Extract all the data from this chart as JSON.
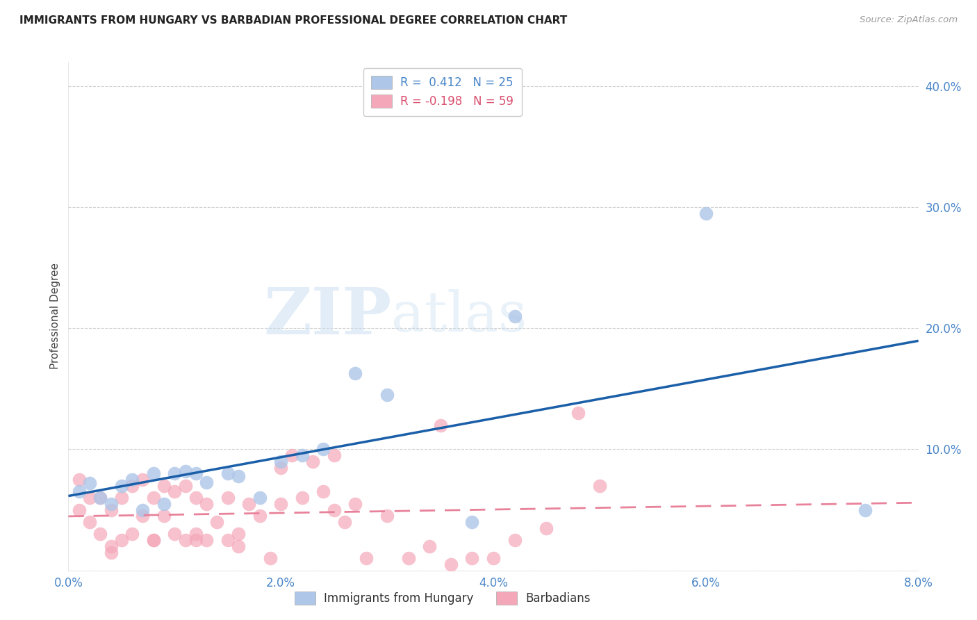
{
  "title": "IMMIGRANTS FROM HUNGARY VS BARBADIAN PROFESSIONAL DEGREE CORRELATION CHART",
  "source": "Source: ZipAtlas.com",
  "ylabel": "Professional Degree",
  "xlim": [
    0.0,
    0.08
  ],
  "ylim": [
    0.0,
    0.42
  ],
  "xtick_labels": [
    "0.0%",
    "2.0%",
    "4.0%",
    "6.0%",
    "8.0%"
  ],
  "xtick_values": [
    0.0,
    0.02,
    0.04,
    0.06,
    0.08
  ],
  "ytick_labels": [
    "",
    "10.0%",
    "20.0%",
    "30.0%",
    "40.0%"
  ],
  "ytick_values": [
    0.0,
    0.1,
    0.2,
    0.3,
    0.4
  ],
  "hungary_R": 0.412,
  "hungary_N": 25,
  "barbados_R": -0.198,
  "barbados_N": 59,
  "hungary_color": "#aec6e8",
  "hungary_line_color": "#1a5fa8",
  "barbados_color": "#f4a7b9",
  "barbados_line_color": "#e8829a",
  "watermark_zip": "ZIP",
  "watermark_atlas": "atlas",
  "hungary_x": [
    0.001,
    0.002,
    0.003,
    0.004,
    0.005,
    0.006,
    0.007,
    0.008,
    0.009,
    0.01,
    0.011,
    0.012,
    0.013,
    0.015,
    0.016,
    0.018,
    0.02,
    0.022,
    0.024,
    0.027,
    0.03,
    0.038,
    0.042,
    0.06,
    0.075
  ],
  "hungary_y": [
    0.065,
    0.072,
    0.06,
    0.055,
    0.07,
    0.075,
    0.05,
    0.08,
    0.055,
    0.08,
    0.082,
    0.08,
    0.073,
    0.08,
    0.078,
    0.06,
    0.09,
    0.095,
    0.1,
    0.163,
    0.145,
    0.04,
    0.21,
    0.295,
    0.05
  ],
  "barbados_x": [
    0.001,
    0.001,
    0.002,
    0.002,
    0.003,
    0.003,
    0.004,
    0.004,
    0.005,
    0.005,
    0.006,
    0.006,
    0.007,
    0.007,
    0.008,
    0.008,
    0.009,
    0.009,
    0.01,
    0.01,
    0.011,
    0.011,
    0.012,
    0.012,
    0.013,
    0.013,
    0.014,
    0.015,
    0.015,
    0.016,
    0.017,
    0.018,
    0.019,
    0.02,
    0.02,
    0.021,
    0.022,
    0.023,
    0.024,
    0.025,
    0.026,
    0.027,
    0.028,
    0.03,
    0.032,
    0.034,
    0.036,
    0.038,
    0.04,
    0.042,
    0.045,
    0.048,
    0.05,
    0.035,
    0.025,
    0.016,
    0.012,
    0.008,
    0.004
  ],
  "barbados_y": [
    0.05,
    0.075,
    0.04,
    0.06,
    0.03,
    0.06,
    0.02,
    0.05,
    0.025,
    0.06,
    0.03,
    0.07,
    0.045,
    0.075,
    0.025,
    0.06,
    0.045,
    0.07,
    0.03,
    0.065,
    0.025,
    0.07,
    0.03,
    0.06,
    0.025,
    0.055,
    0.04,
    0.025,
    0.06,
    0.02,
    0.055,
    0.045,
    0.01,
    0.055,
    0.085,
    0.095,
    0.06,
    0.09,
    0.065,
    0.095,
    0.04,
    0.055,
    0.01,
    0.045,
    0.01,
    0.02,
    0.005,
    0.01,
    0.01,
    0.025,
    0.035,
    0.13,
    0.07,
    0.12,
    0.05,
    0.03,
    0.025,
    0.025,
    0.015
  ],
  "legend_label_hungary": "R =  0.412   N = 25",
  "legend_label_barbados": "R = -0.198   N = 59",
  "bottom_label_hungary": "Immigrants from Hungary",
  "bottom_label_barbados": "Barbadians"
}
